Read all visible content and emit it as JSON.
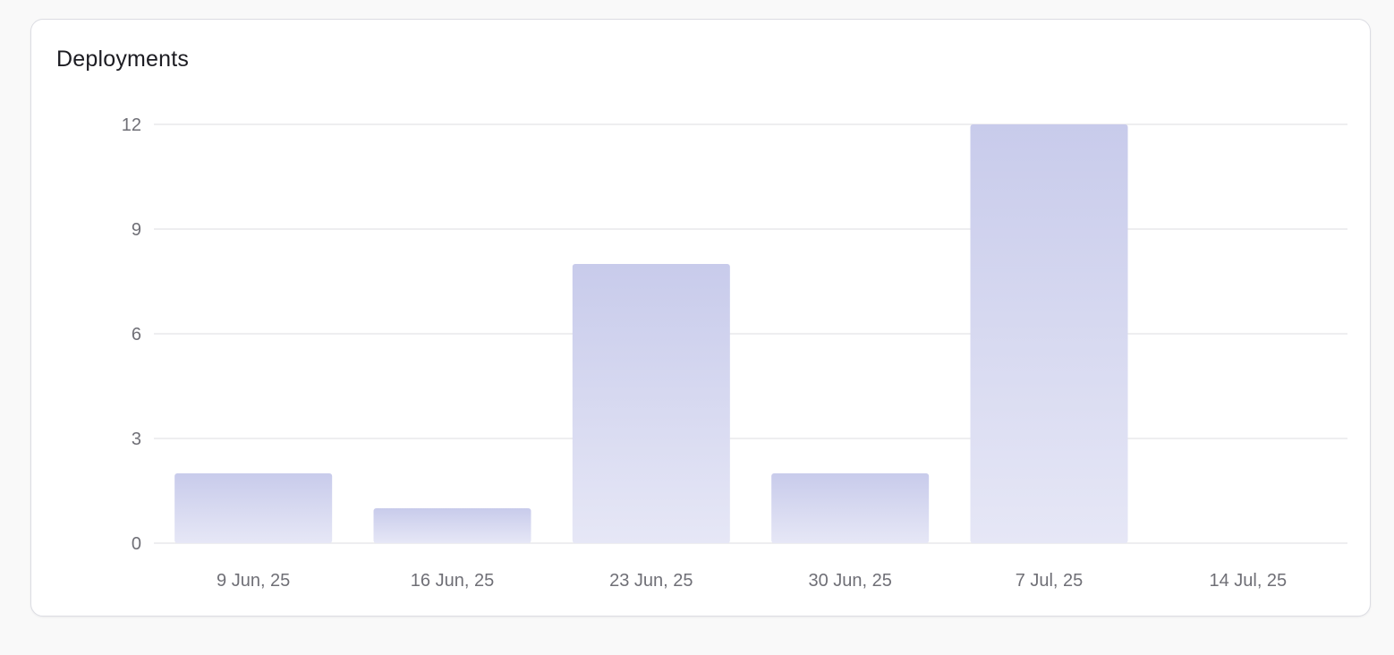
{
  "card": {
    "title": "Deployments"
  },
  "chart_data": {
    "type": "bar",
    "title": "Deployments",
    "xlabel": "",
    "ylabel": "",
    "categories": [
      "9 Jun, 25",
      "16 Jun, 25",
      "23 Jun, 25",
      "30 Jun, 25",
      "7 Jul, 25",
      "14 Jul, 25"
    ],
    "values": [
      2,
      1,
      8,
      2,
      12,
      0
    ],
    "ylim": [
      0,
      12
    ],
    "yticks": [
      0,
      3,
      6,
      9,
      12
    ],
    "grid": true,
    "legend": "none",
    "colors": {
      "bar_top": "#c8cbeb",
      "bar_bottom": "#e6e7f6",
      "grid": "#e8e8ec",
      "tick_text": "#6f6f76"
    }
  }
}
